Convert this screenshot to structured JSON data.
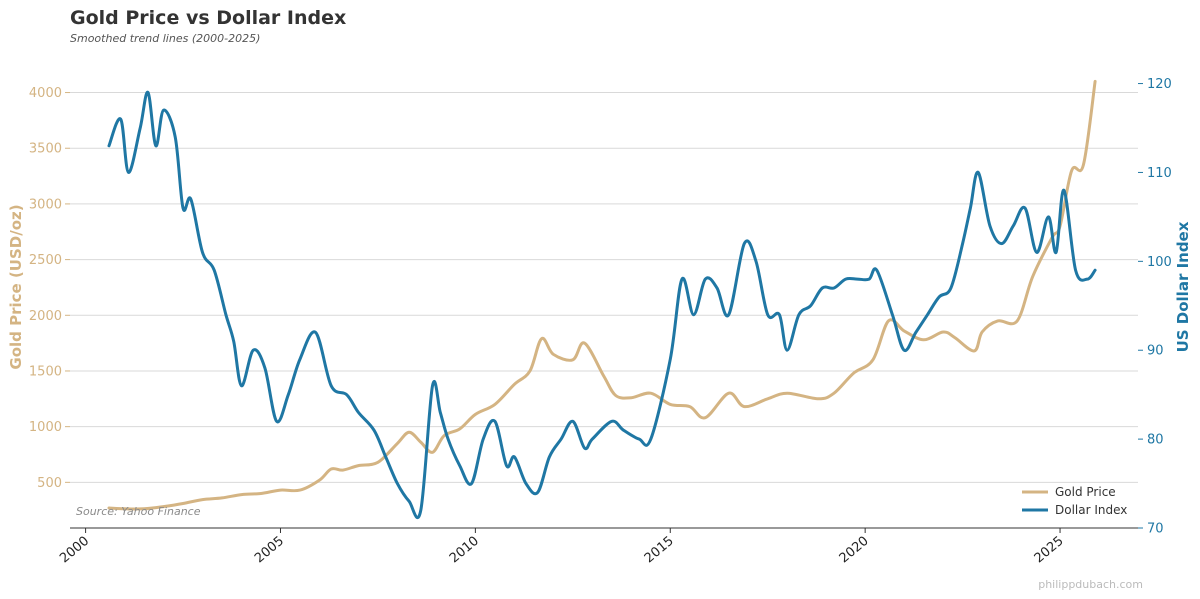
{
  "chart_data": {
    "type": "line",
    "title": "Gold Price vs Dollar Index",
    "subtitle": "Smoothed trend lines (2000-2025)",
    "xlabel": "",
    "ylabel_left": "Gold Price (USD/oz)",
    "ylabel_right": "US Dollar Index",
    "xlim": [
      1999.6,
      2027.0
    ],
    "ylim_left": [
      90,
      4400
    ],
    "ylim_right": [
      70,
      124
    ],
    "x_ticks": [
      2000,
      2005,
      2010,
      2015,
      2020,
      2025
    ],
    "x_tick_labels": [
      "2000",
      "2005",
      "2010",
      "2015",
      "2020",
      "2025"
    ],
    "y_left_ticks": [
      500,
      1000,
      1500,
      2000,
      2500,
      3000,
      3500,
      4000
    ],
    "y_left_tick_labels": [
      "500",
      "1000",
      "1500",
      "2000",
      "2500",
      "3000",
      "3500",
      "4000"
    ],
    "y_right_ticks": [
      70,
      80,
      90,
      100,
      110,
      120
    ],
    "y_right_tick_labels": [
      "70",
      "80",
      "90",
      "100",
      "110",
      "120"
    ],
    "grid": true,
    "legend_position": "bottom-right",
    "series": [
      {
        "name": "Gold Price",
        "axis": "left",
        "color": "#d4b483",
        "x": [
          2000.6,
          2001.0,
          2001.5,
          2002.0,
          2002.5,
          2003.0,
          2003.5,
          2004.0,
          2004.5,
          2005.0,
          2005.5,
          2006.0,
          2006.3,
          2006.6,
          2007.0,
          2007.5,
          2008.0,
          2008.3,
          2008.6,
          2008.9,
          2009.2,
          2009.6,
          2010.0,
          2010.5,
          2011.0,
          2011.4,
          2011.7,
          2012.0,
          2012.5,
          2012.8,
          2013.3,
          2013.6,
          2014.0,
          2014.5,
          2015.0,
          2015.5,
          2015.9,
          2016.5,
          2016.9,
          2017.5,
          2018.0,
          2018.8,
          2019.2,
          2019.7,
          2020.2,
          2020.6,
          2021.0,
          2021.5,
          2022.0,
          2022.3,
          2022.8,
          2023.0,
          2023.4,
          2023.9,
          2024.3,
          2024.8,
          2025.0,
          2025.3,
          2025.6,
          2025.9
        ],
        "values": [
          270,
          262,
          262,
          282,
          310,
          345,
          360,
          390,
          400,
          430,
          430,
          520,
          620,
          610,
          650,
          680,
          850,
          950,
          860,
          770,
          920,
          980,
          1110,
          1200,
          1380,
          1500,
          1790,
          1650,
          1600,
          1750,
          1450,
          1280,
          1260,
          1300,
          1200,
          1180,
          1080,
          1300,
          1180,
          1250,
          1300,
          1250,
          1300,
          1480,
          1600,
          1950,
          1860,
          1780,
          1850,
          1800,
          1680,
          1850,
          1950,
          1950,
          2350,
          2700,
          2800,
          3300,
          3350,
          4100
        ]
      },
      {
        "name": "Dollar Index",
        "axis": "right",
        "color": "#1f77a4",
        "x": [
          2000.6,
          2000.9,
          2001.1,
          2001.4,
          2001.6,
          2001.8,
          2002.0,
          2002.3,
          2002.5,
          2002.7,
          2003.0,
          2003.3,
          2003.6,
          2003.8,
          2004.0,
          2004.3,
          2004.6,
          2004.9,
          2005.2,
          2005.5,
          2005.9,
          2006.3,
          2006.7,
          2007.0,
          2007.4,
          2007.7,
          2008.0,
          2008.3,
          2008.6,
          2008.9,
          2009.1,
          2009.3,
          2009.6,
          2009.9,
          2010.2,
          2010.5,
          2010.8,
          2011.0,
          2011.3,
          2011.6,
          2011.9,
          2012.2,
          2012.5,
          2012.8,
          2013.0,
          2013.5,
          2013.8,
          2014.2,
          2014.5,
          2015.0,
          2015.3,
          2015.6,
          2015.9,
          2016.2,
          2016.5,
          2016.9,
          2017.2,
          2017.5,
          2017.8,
          2018.0,
          2018.3,
          2018.6,
          2018.9,
          2019.2,
          2019.5,
          2019.8,
          2020.1,
          2020.3,
          2020.7,
          2021.0,
          2021.3,
          2021.6,
          2021.9,
          2022.2,
          2022.5,
          2022.7,
          2022.9,
          2023.2,
          2023.5,
          2023.8,
          2024.1,
          2024.4,
          2024.7,
          2024.9,
          2025.1,
          2025.4,
          2025.7,
          2025.9
        ],
        "values": [
          113,
          116,
          110,
          115,
          119,
          113,
          117,
          114,
          106,
          107,
          101,
          99,
          94,
          91,
          86,
          90,
          88,
          82,
          85,
          89,
          92,
          86,
          85,
          83,
          81,
          78,
          75,
          73,
          72,
          86,
          83,
          80,
          77,
          75,
          80,
          82,
          77,
          78,
          75,
          74,
          78,
          80,
          82,
          79,
          80,
          82,
          81,
          80,
          80,
          89,
          98,
          94,
          98,
          97,
          94,
          102,
          100,
          94,
          94,
          90,
          94,
          95,
          97,
          97,
          98,
          98,
          98,
          99,
          94,
          90,
          92,
          94,
          96,
          97,
          102,
          106,
          110,
          104,
          102,
          104,
          106,
          101,
          105,
          101,
          108,
          99,
          98,
          99
        ]
      }
    ],
    "annotations": {
      "source": "Source: Yahoo Finance",
      "watermark": "philippdubach.com"
    }
  }
}
